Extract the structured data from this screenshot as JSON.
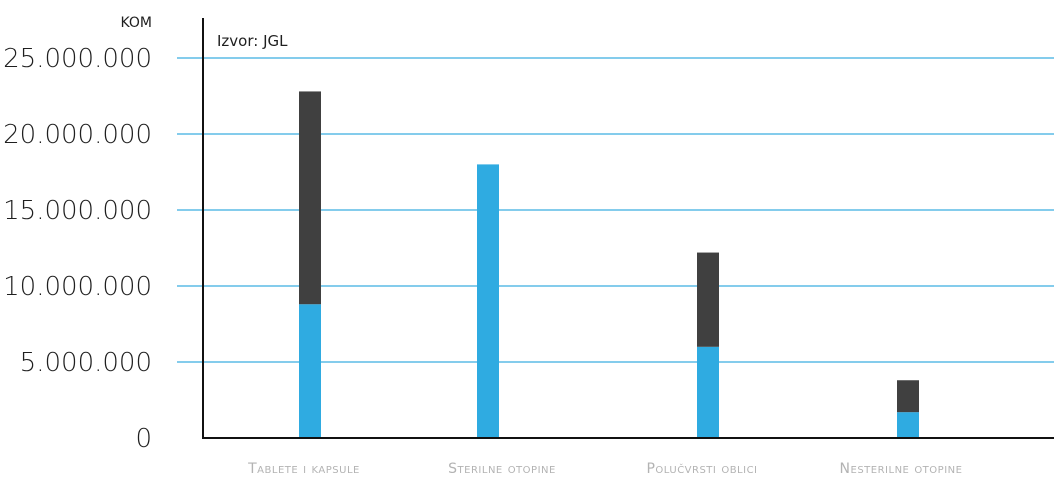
{
  "chart_data": {
    "type": "bar",
    "stacked": true,
    "unit_label": "KOM",
    "source_label": "Izvor: JGL",
    "categories": [
      "Tablete i kapsule",
      "Sterilne otopine",
      "Polučvrsti oblici",
      "Nesterilne otopine"
    ],
    "series": [
      {
        "color": "#2fabe1",
        "values": [
          8800000,
          18000000,
          6000000,
          1700000
        ]
      },
      {
        "color": "#404040",
        "values": [
          14000000,
          0,
          6200000,
          2100000
        ]
      }
    ],
    "y_ticks": [
      {
        "value": 0,
        "label": "0"
      },
      {
        "value": 5000000,
        "label": "5.000.000"
      },
      {
        "value": 10000000,
        "label": "10.000.000"
      },
      {
        "value": 15000000,
        "label": "15.000.000"
      },
      {
        "value": 20000000,
        "label": "20.000.000"
      },
      {
        "value": 25000000,
        "label": "25.000.000"
      }
    ],
    "ylim": [
      0,
      25000000
    ],
    "grid": true,
    "grid_color": "#3aaee0"
  }
}
